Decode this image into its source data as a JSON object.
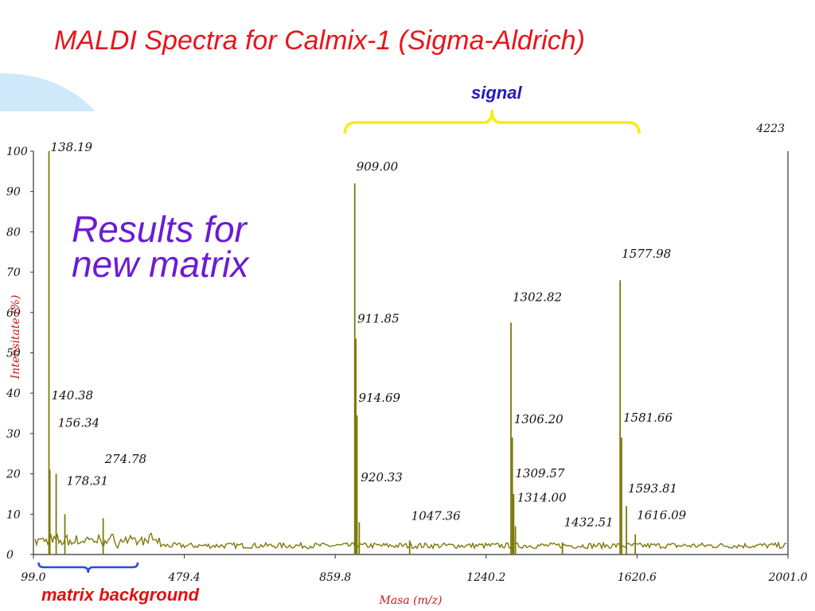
{
  "slide": {
    "title": "MALDI Spectra for Calmix-1 (Sigma-Aldrich)",
    "results_note_line1": "Results for",
    "results_note_line2": "new matrix",
    "signal_label": "signal",
    "matrix_label": "matrix background",
    "colors": {
      "title": "#e8141b",
      "results_note": "#6c1bd6",
      "signal_label": "#2418c0",
      "signal_bracket": "#f5ee10",
      "matrix_bracket": "#2a4ae0",
      "matrix_label": "#e01010",
      "spectrum": "#7d7a0c",
      "deco_arc": "#cfe9fb"
    }
  },
  "chart_data": {
    "type": "line",
    "title": "",
    "xlabel": "Masa (m/z)",
    "ylabel": "Intensitate (%)",
    "xlim": [
      99.0,
      2001.0
    ],
    "ylim": [
      0,
      100
    ],
    "x_tick_labels": [
      "99.0",
      "479.4",
      "859.8",
      "1240.2",
      "1620.6",
      "2001.0"
    ],
    "y_tick_labels": [
      "0",
      "10",
      "20",
      "30",
      "40",
      "50",
      "60",
      "70",
      "80",
      "90",
      "100"
    ],
    "max_counts_label": "4223",
    "baseline_level": 1.5,
    "series": [
      {
        "peaks": [
          {
            "x": 138.19,
            "y": 100,
            "label": "138.19",
            "label_x": 138.19,
            "label_y": 100
          },
          {
            "x": 140.38,
            "y": 21,
            "label": "140.38",
            "label_x": 140.38,
            "label_y": 38.5
          },
          {
            "x": 156.34,
            "y": 20,
            "label": "156.34",
            "label_x": 156.34,
            "label_y": 31.7
          },
          {
            "x": 274.78,
            "y": 9,
            "label": "274.78",
            "label_x": 274.78,
            "label_y": 22.7
          },
          {
            "x": 178.31,
            "y": 10,
            "label": "178.31",
            "label_x": 178.31,
            "label_y": 17.3
          },
          {
            "x": 909.0,
            "y": 92,
            "label": "909.00",
            "label_x": 909.0,
            "label_y": 95.2
          },
          {
            "x": 911.85,
            "y": 53.5,
            "label": "911.85",
            "label_x": 911.85,
            "label_y": 57.5
          },
          {
            "x": 914.69,
            "y": 34.5,
            "label": "914.69",
            "label_x": 914.69,
            "label_y": 37.9
          },
          {
            "x": 920.33,
            "y": 8,
            "label": "920.33",
            "label_x": 920.33,
            "label_y": 18.1
          },
          {
            "x": 1047.36,
            "y": 3.5,
            "label": "1047.36",
            "label_x": 1047.36,
            "label_y": 8.6
          },
          {
            "x": 1302.82,
            "y": 57.5,
            "label": "1302.82",
            "label_x": 1302.82,
            "label_y": 62.8
          },
          {
            "x": 1306.2,
            "y": 29,
            "label": "1306.20",
            "label_x": 1306.2,
            "label_y": 32.5
          },
          {
            "x": 1309.57,
            "y": 15,
            "label": "1309.57",
            "label_x": 1309.57,
            "label_y": 19.1
          },
          {
            "x": 1314.0,
            "y": 7,
            "label": "1314.00",
            "label_x": 1314.0,
            "label_y": 13.1
          },
          {
            "x": 1432.51,
            "y": 3,
            "label": "1432.51",
            "label_x": 1432.51,
            "label_y": 7.0
          },
          {
            "x": 1577.98,
            "y": 68,
            "label": "1577.98",
            "label_x": 1577.98,
            "label_y": 73.6
          },
          {
            "x": 1581.66,
            "y": 29,
            "label": "1581.66",
            "label_x": 1581.66,
            "label_y": 32.9
          },
          {
            "x": 1593.81,
            "y": 12,
            "label": "1593.81",
            "label_x": 1593.81,
            "label_y": 15.4
          },
          {
            "x": 1616.09,
            "y": 5,
            "label": "1616.09",
            "label_x": 1616.09,
            "label_y": 8.8
          }
        ]
      }
    ],
    "annotations": [
      {
        "text": "signal",
        "x_start": 884.0,
        "x_end": 1626.0
      },
      {
        "text": "matrix background",
        "x_start": 112.0,
        "x_end": 362.0
      }
    ]
  }
}
